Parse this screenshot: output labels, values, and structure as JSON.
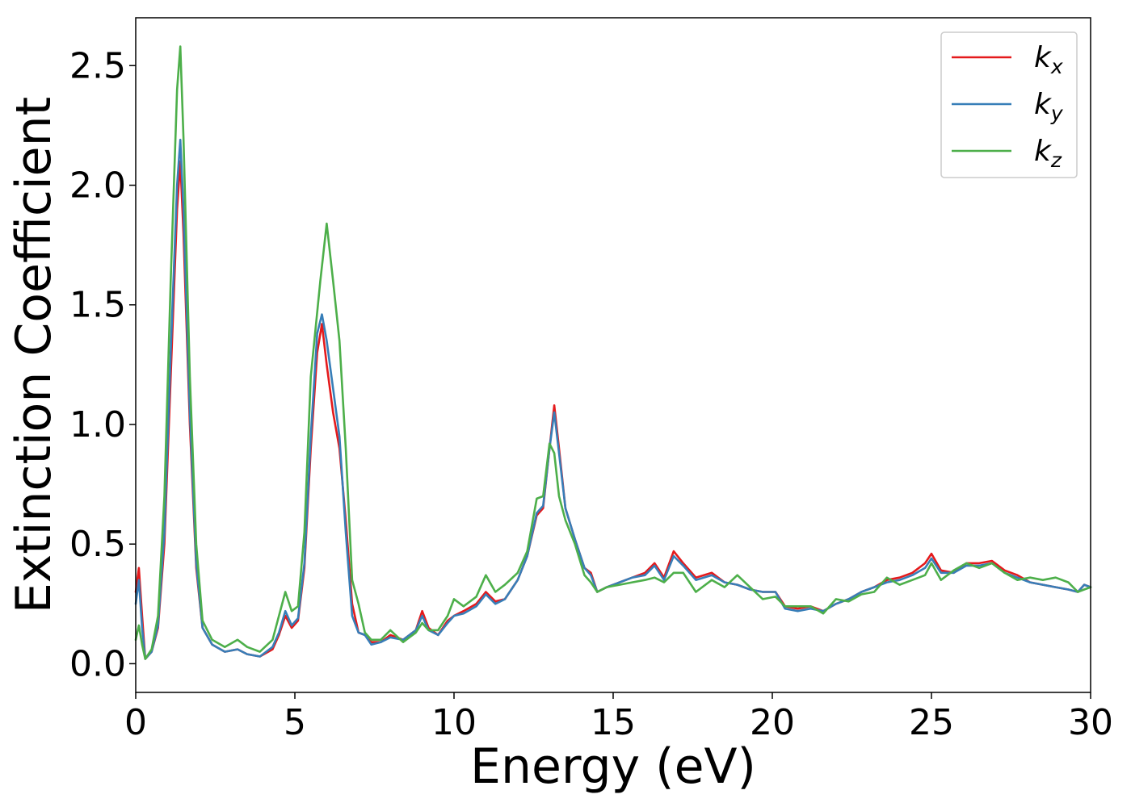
{
  "chart_data": {
    "type": "line",
    "title": "",
    "xlabel": "Energy (eV)",
    "ylabel": "Extinction Coefficient",
    "xlim": [
      0,
      30
    ],
    "ylim": [
      -0.12,
      2.7
    ],
    "x_ticks": [
      "0",
      "5",
      "10",
      "15",
      "20",
      "25",
      "30"
    ],
    "y_ticks": [
      "0.0",
      "0.5",
      "1.0",
      "1.5",
      "2.0",
      "2.5"
    ],
    "grid": false,
    "legend_position": "top-right",
    "series": [
      {
        "name": "k",
        "subscript": "x",
        "color": "#e41a1c",
        "points": [
          [
            0,
            0.3
          ],
          [
            0.1,
            0.4
          ],
          [
            0.2,
            0.2
          ],
          [
            0.3,
            0.02
          ],
          [
            0.5,
            0.05
          ],
          [
            0.7,
            0.15
          ],
          [
            0.9,
            0.5
          ],
          [
            1.1,
            1.2
          ],
          [
            1.3,
            1.9
          ],
          [
            1.4,
            2.1
          ],
          [
            1.5,
            1.8
          ],
          [
            1.7,
            1.0
          ],
          [
            1.9,
            0.4
          ],
          [
            2.1,
            0.15
          ],
          [
            2.4,
            0.08
          ],
          [
            2.8,
            0.05
          ],
          [
            3.2,
            0.06
          ],
          [
            3.5,
            0.04
          ],
          [
            3.9,
            0.03
          ],
          [
            4.3,
            0.06
          ],
          [
            4.5,
            0.12
          ],
          [
            4.7,
            0.2
          ],
          [
            4.9,
            0.15
          ],
          [
            5.1,
            0.18
          ],
          [
            5.3,
            0.4
          ],
          [
            5.5,
            0.9
          ],
          [
            5.7,
            1.3
          ],
          [
            5.85,
            1.42
          ],
          [
            6.0,
            1.25
          ],
          [
            6.2,
            1.05
          ],
          [
            6.4,
            0.9
          ],
          [
            6.6,
            0.6
          ],
          [
            6.8,
            0.25
          ],
          [
            7.0,
            0.13
          ],
          [
            7.2,
            0.12
          ],
          [
            7.4,
            0.09
          ],
          [
            7.7,
            0.09
          ],
          [
            8.0,
            0.12
          ],
          [
            8.4,
            0.1
          ],
          [
            8.8,
            0.14
          ],
          [
            9.0,
            0.22
          ],
          [
            9.2,
            0.15
          ],
          [
            9.5,
            0.12
          ],
          [
            9.8,
            0.18
          ],
          [
            10.0,
            0.2
          ],
          [
            10.3,
            0.22
          ],
          [
            10.7,
            0.25
          ],
          [
            11.0,
            0.3
          ],
          [
            11.3,
            0.26
          ],
          [
            11.6,
            0.27
          ],
          [
            12.0,
            0.35
          ],
          [
            12.3,
            0.45
          ],
          [
            12.6,
            0.62
          ],
          [
            12.8,
            0.65
          ],
          [
            13.0,
            0.9
          ],
          [
            13.15,
            1.08
          ],
          [
            13.3,
            0.9
          ],
          [
            13.5,
            0.65
          ],
          [
            13.8,
            0.52
          ],
          [
            14.1,
            0.4
          ],
          [
            14.3,
            0.38
          ],
          [
            14.5,
            0.3
          ],
          [
            14.8,
            0.32
          ],
          [
            15.2,
            0.34
          ],
          [
            15.6,
            0.36
          ],
          [
            16.0,
            0.38
          ],
          [
            16.3,
            0.42
          ],
          [
            16.6,
            0.36
          ],
          [
            16.9,
            0.47
          ],
          [
            17.2,
            0.42
          ],
          [
            17.6,
            0.36
          ],
          [
            18.1,
            0.38
          ],
          [
            18.5,
            0.34
          ],
          [
            18.9,
            0.33
          ],
          [
            19.3,
            0.31
          ],
          [
            19.7,
            0.3
          ],
          [
            20.1,
            0.3
          ],
          [
            20.4,
            0.24
          ],
          [
            20.8,
            0.23
          ],
          [
            21.2,
            0.24
          ],
          [
            21.6,
            0.22
          ],
          [
            22.0,
            0.25
          ],
          [
            22.4,
            0.27
          ],
          [
            22.8,
            0.3
          ],
          [
            23.2,
            0.32
          ],
          [
            23.6,
            0.35
          ],
          [
            24.0,
            0.36
          ],
          [
            24.4,
            0.38
          ],
          [
            24.8,
            0.42
          ],
          [
            25.0,
            0.46
          ],
          [
            25.3,
            0.39
          ],
          [
            25.7,
            0.38
          ],
          [
            26.1,
            0.42
          ],
          [
            26.5,
            0.42
          ],
          [
            26.9,
            0.43
          ],
          [
            27.3,
            0.39
          ],
          [
            27.7,
            0.37
          ],
          [
            28.1,
            0.34
          ],
          [
            28.5,
            0.33
          ],
          [
            28.9,
            0.32
          ],
          [
            29.3,
            0.31
          ],
          [
            29.6,
            0.3
          ],
          [
            29.8,
            0.33
          ],
          [
            30.0,
            0.32
          ]
        ]
      },
      {
        "name": "k",
        "subscript": "y",
        "color": "#377eb8",
        "points": [
          [
            0,
            0.25
          ],
          [
            0.1,
            0.35
          ],
          [
            0.2,
            0.15
          ],
          [
            0.3,
            0.02
          ],
          [
            0.5,
            0.05
          ],
          [
            0.7,
            0.16
          ],
          [
            0.9,
            0.55
          ],
          [
            1.1,
            1.3
          ],
          [
            1.3,
            2.0
          ],
          [
            1.4,
            2.19
          ],
          [
            1.5,
            1.9
          ],
          [
            1.7,
            1.05
          ],
          [
            1.9,
            0.42
          ],
          [
            2.1,
            0.15
          ],
          [
            2.4,
            0.08
          ],
          [
            2.8,
            0.05
          ],
          [
            3.2,
            0.06
          ],
          [
            3.5,
            0.04
          ],
          [
            3.9,
            0.03
          ],
          [
            4.3,
            0.07
          ],
          [
            4.5,
            0.13
          ],
          [
            4.7,
            0.22
          ],
          [
            4.9,
            0.16
          ],
          [
            5.1,
            0.19
          ],
          [
            5.3,
            0.42
          ],
          [
            5.5,
            0.95
          ],
          [
            5.7,
            1.38
          ],
          [
            5.85,
            1.46
          ],
          [
            6.0,
            1.35
          ],
          [
            6.2,
            1.15
          ],
          [
            6.4,
            0.95
          ],
          [
            6.6,
            0.55
          ],
          [
            6.8,
            0.2
          ],
          [
            7.0,
            0.13
          ],
          [
            7.2,
            0.12
          ],
          [
            7.4,
            0.08
          ],
          [
            7.7,
            0.09
          ],
          [
            8.0,
            0.11
          ],
          [
            8.4,
            0.1
          ],
          [
            8.8,
            0.14
          ],
          [
            9.0,
            0.2
          ],
          [
            9.2,
            0.14
          ],
          [
            9.5,
            0.12
          ],
          [
            9.8,
            0.17
          ],
          [
            10.0,
            0.2
          ],
          [
            10.3,
            0.21
          ],
          [
            10.7,
            0.24
          ],
          [
            11.0,
            0.29
          ],
          [
            11.3,
            0.25
          ],
          [
            11.6,
            0.27
          ],
          [
            12.0,
            0.35
          ],
          [
            12.3,
            0.45
          ],
          [
            12.6,
            0.63
          ],
          [
            12.8,
            0.66
          ],
          [
            13.0,
            0.9
          ],
          [
            13.15,
            1.05
          ],
          [
            13.3,
            0.88
          ],
          [
            13.5,
            0.65
          ],
          [
            13.8,
            0.52
          ],
          [
            14.1,
            0.4
          ],
          [
            14.3,
            0.37
          ],
          [
            14.5,
            0.3
          ],
          [
            14.8,
            0.32
          ],
          [
            15.2,
            0.34
          ],
          [
            15.6,
            0.36
          ],
          [
            16.0,
            0.37
          ],
          [
            16.3,
            0.41
          ],
          [
            16.6,
            0.35
          ],
          [
            16.9,
            0.45
          ],
          [
            17.2,
            0.41
          ],
          [
            17.6,
            0.35
          ],
          [
            18.1,
            0.37
          ],
          [
            18.5,
            0.34
          ],
          [
            18.9,
            0.33
          ],
          [
            19.3,
            0.31
          ],
          [
            19.7,
            0.3
          ],
          [
            20.1,
            0.3
          ],
          [
            20.4,
            0.23
          ],
          [
            20.8,
            0.22
          ],
          [
            21.2,
            0.23
          ],
          [
            21.6,
            0.22
          ],
          [
            22.0,
            0.25
          ],
          [
            22.4,
            0.27
          ],
          [
            22.8,
            0.3
          ],
          [
            23.2,
            0.32
          ],
          [
            23.6,
            0.34
          ],
          [
            24.0,
            0.35
          ],
          [
            24.4,
            0.37
          ],
          [
            24.8,
            0.4
          ],
          [
            25.0,
            0.44
          ],
          [
            25.3,
            0.38
          ],
          [
            25.7,
            0.38
          ],
          [
            26.1,
            0.41
          ],
          [
            26.5,
            0.41
          ],
          [
            26.9,
            0.42
          ],
          [
            27.3,
            0.38
          ],
          [
            27.7,
            0.36
          ],
          [
            28.1,
            0.34
          ],
          [
            28.5,
            0.33
          ],
          [
            28.9,
            0.32
          ],
          [
            29.3,
            0.31
          ],
          [
            29.6,
            0.3
          ],
          [
            29.8,
            0.33
          ],
          [
            30.0,
            0.32
          ]
        ]
      },
      {
        "name": "k",
        "subscript": "z",
        "color": "#4daf4a",
        "points": [
          [
            0,
            0.1
          ],
          [
            0.1,
            0.16
          ],
          [
            0.2,
            0.08
          ],
          [
            0.3,
            0.02
          ],
          [
            0.5,
            0.06
          ],
          [
            0.7,
            0.2
          ],
          [
            0.9,
            0.7
          ],
          [
            1.1,
            1.6
          ],
          [
            1.3,
            2.4
          ],
          [
            1.4,
            2.58
          ],
          [
            1.5,
            2.2
          ],
          [
            1.7,
            1.2
          ],
          [
            1.9,
            0.5
          ],
          [
            2.1,
            0.18
          ],
          [
            2.4,
            0.1
          ],
          [
            2.8,
            0.07
          ],
          [
            3.2,
            0.1
          ],
          [
            3.5,
            0.07
          ],
          [
            3.9,
            0.05
          ],
          [
            4.3,
            0.1
          ],
          [
            4.5,
            0.2
          ],
          [
            4.7,
            0.3
          ],
          [
            4.9,
            0.22
          ],
          [
            5.1,
            0.24
          ],
          [
            5.3,
            0.55
          ],
          [
            5.5,
            1.2
          ],
          [
            5.8,
            1.6
          ],
          [
            6.0,
            1.84
          ],
          [
            6.2,
            1.6
          ],
          [
            6.4,
            1.35
          ],
          [
            6.6,
            0.9
          ],
          [
            6.8,
            0.35
          ],
          [
            7.0,
            0.25
          ],
          [
            7.2,
            0.13
          ],
          [
            7.4,
            0.1
          ],
          [
            7.7,
            0.1
          ],
          [
            8.0,
            0.14
          ],
          [
            8.4,
            0.09
          ],
          [
            8.8,
            0.13
          ],
          [
            9.0,
            0.17
          ],
          [
            9.2,
            0.14
          ],
          [
            9.5,
            0.14
          ],
          [
            9.8,
            0.2
          ],
          [
            10.0,
            0.27
          ],
          [
            10.3,
            0.24
          ],
          [
            10.7,
            0.28
          ],
          [
            11.0,
            0.37
          ],
          [
            11.3,
            0.3
          ],
          [
            11.6,
            0.33
          ],
          [
            12.0,
            0.38
          ],
          [
            12.3,
            0.47
          ],
          [
            12.6,
            0.69
          ],
          [
            12.8,
            0.7
          ],
          [
            13.0,
            0.92
          ],
          [
            13.15,
            0.88
          ],
          [
            13.3,
            0.7
          ],
          [
            13.5,
            0.6
          ],
          [
            13.8,
            0.5
          ],
          [
            14.1,
            0.37
          ],
          [
            14.3,
            0.34
          ],
          [
            14.5,
            0.3
          ],
          [
            14.8,
            0.32
          ],
          [
            15.2,
            0.33
          ],
          [
            15.6,
            0.34
          ],
          [
            16.0,
            0.35
          ],
          [
            16.3,
            0.36
          ],
          [
            16.6,
            0.34
          ],
          [
            16.9,
            0.38
          ],
          [
            17.2,
            0.38
          ],
          [
            17.6,
            0.3
          ],
          [
            18.1,
            0.35
          ],
          [
            18.5,
            0.32
          ],
          [
            18.9,
            0.37
          ],
          [
            19.3,
            0.32
          ],
          [
            19.7,
            0.27
          ],
          [
            20.1,
            0.28
          ],
          [
            20.4,
            0.24
          ],
          [
            20.8,
            0.24
          ],
          [
            21.2,
            0.24
          ],
          [
            21.6,
            0.21
          ],
          [
            22.0,
            0.27
          ],
          [
            22.4,
            0.26
          ],
          [
            22.8,
            0.29
          ],
          [
            23.2,
            0.3
          ],
          [
            23.6,
            0.36
          ],
          [
            24.0,
            0.33
          ],
          [
            24.4,
            0.35
          ],
          [
            24.8,
            0.37
          ],
          [
            25.0,
            0.42
          ],
          [
            25.3,
            0.35
          ],
          [
            25.7,
            0.39
          ],
          [
            26.1,
            0.42
          ],
          [
            26.5,
            0.4
          ],
          [
            26.9,
            0.42
          ],
          [
            27.3,
            0.38
          ],
          [
            27.7,
            0.35
          ],
          [
            28.1,
            0.36
          ],
          [
            28.5,
            0.35
          ],
          [
            28.9,
            0.36
          ],
          [
            29.3,
            0.34
          ],
          [
            29.6,
            0.3
          ],
          [
            29.8,
            0.31
          ],
          [
            30.0,
            0.32
          ]
        ]
      }
    ]
  }
}
